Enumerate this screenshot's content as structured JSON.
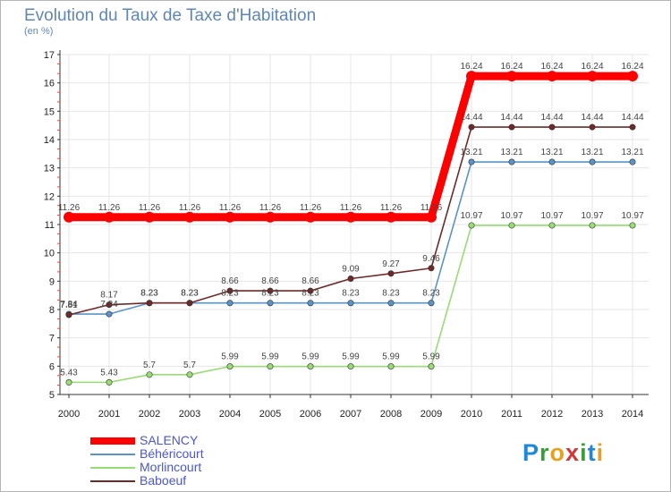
{
  "chart": {
    "title": "Evolution du Taux de Taxe d'Habitation",
    "subtitle": "(en %)",
    "brand": "Proxiti"
  },
  "colors": {
    "SALENCY": "#ff0000",
    "Béhéricourt": "#5a93c8",
    "Morlincourt": "#98dc74",
    "Baboeuf": "#6e2a2a",
    "axis": "#333333",
    "grid": "#e6e6e6",
    "tick_mark": "#ff4444"
  },
  "chart_data": {
    "type": "line",
    "x": [
      2000,
      2001,
      2002,
      2003,
      2004,
      2005,
      2006,
      2007,
      2008,
      2009,
      2010,
      2011,
      2012,
      2013,
      2014
    ],
    "ylim": [
      5,
      17
    ],
    "yticks": [
      5,
      6,
      7,
      8,
      9,
      10,
      11,
      12,
      13,
      14,
      15,
      16,
      17
    ],
    "grid": true,
    "legend": "bottom-left",
    "series": [
      {
        "name": "SALENCY",
        "values": [
          11.26,
          11.26,
          11.26,
          11.26,
          11.26,
          11.26,
          11.26,
          11.26,
          11.26,
          11.26,
          16.24,
          16.24,
          16.24,
          16.24,
          16.24
        ],
        "labels": [
          "11.26",
          "11.26",
          "11.26",
          "11.26",
          "11.26",
          "11.26",
          "11.26",
          "11.26",
          "11.26",
          "11.26",
          "16.24",
          "16.24",
          "16.24",
          "16.24",
          "16.24"
        ]
      },
      {
        "name": "Béhéricourt",
        "values": [
          7.84,
          7.84,
          8.23,
          8.23,
          8.23,
          8.23,
          8.23,
          8.23,
          8.23,
          8.23,
          13.21,
          13.21,
          13.21,
          13.21,
          13.21
        ],
        "labels": [
          "7.84",
          "7.84",
          "8.23",
          "8.23",
          "8.23",
          "8.23",
          "8.23",
          "8.23",
          "8.23",
          "8.23",
          "13.21",
          "13.21",
          "13.21",
          "13.21",
          "13.21"
        ]
      },
      {
        "name": "Morlincourt",
        "values": [
          5.43,
          5.43,
          5.7,
          5.7,
          5.99,
          5.99,
          5.99,
          5.99,
          5.99,
          5.99,
          10.97,
          10.97,
          10.97,
          10.97,
          10.97
        ],
        "labels": [
          "5.43",
          "5.43",
          "5.7",
          "5.7",
          "5.99",
          "5.99",
          "5.99",
          "5.99",
          "5.99",
          "5.99",
          "10.97",
          "10.97",
          "10.97",
          "10.97",
          "10.97"
        ]
      },
      {
        "name": "Baboeuf",
        "values": [
          7.81,
          8.17,
          8.23,
          8.23,
          8.66,
          8.66,
          8.66,
          9.09,
          9.27,
          9.46,
          14.44,
          14.44,
          14.44,
          14.44,
          14.44
        ],
        "labels": [
          "7.81",
          "8.17",
          "8.23",
          "8.23",
          "8.66",
          "8.66",
          "8.66",
          "9.09",
          "9.27",
          "9.46",
          "14.44",
          "14.44",
          "14.44",
          "14.44",
          "14.44"
        ]
      }
    ]
  }
}
